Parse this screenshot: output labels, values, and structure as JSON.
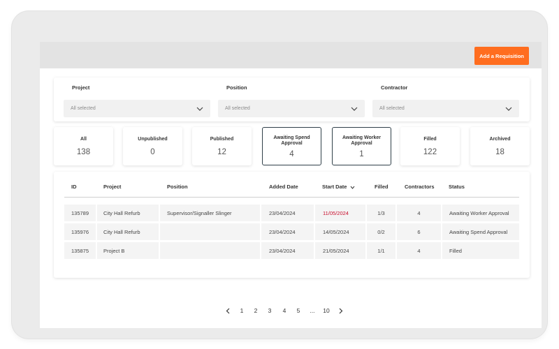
{
  "header": {
    "add_requisition_label": "Add a Requisition"
  },
  "filters": [
    {
      "label": "Project",
      "value": "All selected"
    },
    {
      "label": "Position",
      "value": "All selected"
    },
    {
      "label": "Contractor",
      "value": "All selected"
    }
  ],
  "status_tabs": [
    {
      "label": "All",
      "count": "138",
      "highlighted": false
    },
    {
      "label": "Unpublished",
      "count": "0",
      "highlighted": false
    },
    {
      "label": "Published",
      "count": "12",
      "highlighted": false
    },
    {
      "label": "Awaiting Spend Approval",
      "count": "4",
      "highlighted": true
    },
    {
      "label": "Awaiting Worker Approval",
      "count": "1",
      "highlighted": true
    },
    {
      "label": "Filled",
      "count": "122",
      "highlighted": false
    },
    {
      "label": "Archived",
      "count": "18",
      "highlighted": false
    }
  ],
  "table": {
    "columns": {
      "id": "ID",
      "project": "Project",
      "position": "Position",
      "added_date": "Added Date",
      "start_date": "Start Date",
      "filled": "Filled",
      "contractors": "Contractors",
      "status": "Status"
    },
    "rows": [
      {
        "id": "135789",
        "project": "City Hall Refurb",
        "position": "Supervisor/Signaller Slinger",
        "added_date": "23/04/2024",
        "start_date": "11/05/2024",
        "filled": "1/3",
        "contractors": "4",
        "status": "Awaiting Worker Approval"
      },
      {
        "id": "135976",
        "project": "City Hall Refurb",
        "position": "",
        "added_date": "23/04/2024",
        "start_date": "14/05/2024",
        "filled": "0/2",
        "contractors": "6",
        "status": "Awaiting Spend Approval"
      },
      {
        "id": "135875",
        "project": "Project B",
        "position": "",
        "added_date": "23/04/2024",
        "start_date": "21/05/2024",
        "filled": "1/1",
        "contractors": "4",
        "status": "Filled"
      }
    ]
  },
  "pagination": {
    "pages": [
      "1",
      "2",
      "3",
      "4",
      "5"
    ],
    "ellipsis": "...",
    "last_page": "10"
  },
  "colors": {
    "accent": "#ff6d1f",
    "highlight_border": "#2f3f48",
    "date_warning": "#c8102e"
  }
}
